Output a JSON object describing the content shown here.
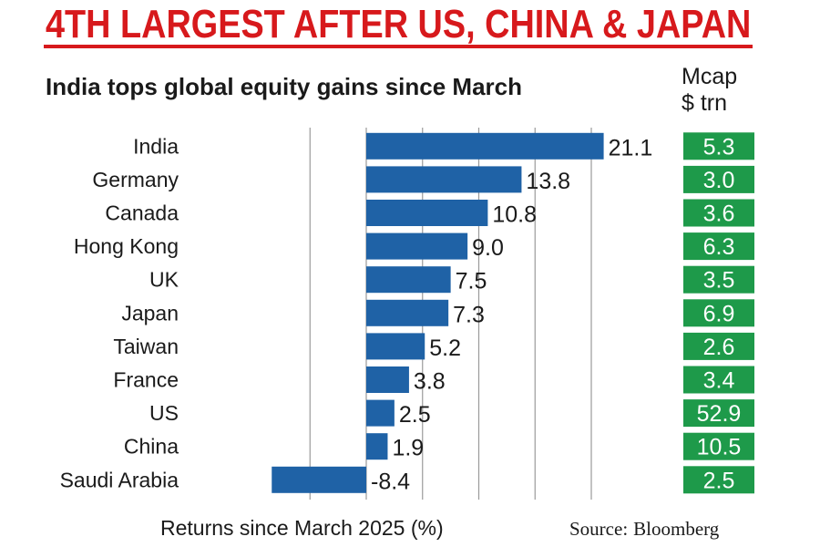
{
  "headline": "4TH LARGEST AFTER US, CHINA & JAPAN",
  "subtitle": "India tops global equity gains since March",
  "mcap_header": {
    "line1": "Mcap",
    "line2": "$ trn"
  },
  "source": {
    "label": "Source:",
    "name": "Bloomberg"
  },
  "colors": {
    "headline": "#d7191c",
    "bar": "#1f62a6",
    "mcap_box": "#1e9a4a",
    "grid": "#9a9a9a"
  },
  "chart_data": {
    "type": "bar",
    "orientation": "horizontal",
    "xlabel": "Returns since March 2025 (%)",
    "ylabel": "",
    "xlim": [
      -10,
      25
    ],
    "grid": true,
    "categories": [
      "India",
      "Germany",
      "Canada",
      "Hong Kong",
      "UK",
      "Japan",
      "Taiwan",
      "France",
      "US",
      "China",
      "Saudi Arabia"
    ],
    "values": [
      21.1,
      13.8,
      10.8,
      9.0,
      7.5,
      7.3,
      5.2,
      3.8,
      2.5,
      1.9,
      -8.4
    ],
    "value_labels": [
      "21.1",
      "13.8",
      "10.8",
      "9.0",
      "7.5",
      "7.3",
      "5.2",
      "3.8",
      "2.5",
      "1.9",
      "-8.4"
    ],
    "mcap_trn": [
      "5.3",
      "3.0",
      "3.6",
      "6.3",
      "3.5",
      "6.9",
      "2.6",
      "3.4",
      "52.9",
      "10.5",
      "2.5"
    ]
  }
}
